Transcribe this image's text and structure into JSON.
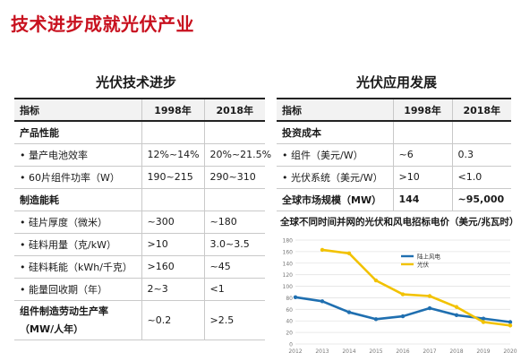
{
  "title": "技术进步成就光伏产业",
  "left": {
    "title": "光伏技术进步",
    "headers": [
      "指标",
      "1998年",
      "2018年"
    ],
    "rows": [
      {
        "label": "产品性能",
        "type": "section",
        "v1": "",
        "v2": ""
      },
      {
        "label": "量产电池效率",
        "type": "bullet",
        "v1": "12%~14%",
        "v2": "20%~21.5%"
      },
      {
        "label": "60片组件功率（W）",
        "type": "bullet",
        "v1": "190~215",
        "v2": "290~310"
      },
      {
        "label": "制造能耗",
        "type": "section",
        "v1": "",
        "v2": ""
      },
      {
        "label": "硅片厚度（微米）",
        "type": "bullet",
        "v1": "~300",
        "v2": "~180"
      },
      {
        "label": "硅料用量（克/kW）",
        "type": "bullet",
        "v1": ">10",
        "v2": "3.0~3.5"
      },
      {
        "label": "硅料耗能（kWh/千克）",
        "type": "bullet",
        "v1": ">160",
        "v2": "~45"
      },
      {
        "label": "能量回收期（年）",
        "type": "bullet",
        "v1": "2~3",
        "v2": "<1"
      },
      {
        "label": "组件制造劳动生产率",
        "label2": "（MW/人年）",
        "type": "section-tall",
        "v1": "~0.2",
        "v2": ">2.5"
      }
    ]
  },
  "right": {
    "title": "光伏应用发展",
    "headers": [
      "指标",
      "1998年",
      "2018年"
    ],
    "rows": [
      {
        "label": "投资成本",
        "type": "section",
        "v1": "",
        "v2": ""
      },
      {
        "label": "组件（美元/W）",
        "type": "bullet",
        "v1": "~6",
        "v2": "0.3"
      },
      {
        "label": "光伏系统（美元/W）",
        "type": "bullet",
        "v1": ">10",
        "v2": "<1.0"
      },
      {
        "label": "全球市场规模（MW）",
        "type": "bold",
        "v1": "144",
        "v2": "~95,000"
      }
    ]
  },
  "chart_data": {
    "type": "line",
    "title": "全球不同时间并网的光伏和风电招标电价（美元/兆瓦时）",
    "x": [
      2012,
      2013,
      2014,
      2015,
      2016,
      2017,
      2018,
      2019,
      2020
    ],
    "ylim": [
      0,
      180
    ],
    "yticks": [
      0,
      20,
      40,
      60,
      80,
      100,
      120,
      140,
      160,
      180
    ],
    "series": [
      {
        "name": "陆上风电",
        "color": "#1f6fb0",
        "values": [
          81,
          74,
          55,
          43,
          48,
          62,
          50,
          44,
          38
        ]
      },
      {
        "name": "光伏",
        "color": "#f2c200",
        "values": [
          null,
          163,
          157,
          110,
          86,
          83,
          64,
          38,
          32
        ]
      }
    ],
    "legend": "top-center",
    "grid": true
  },
  "colors": {
    "accent": "#c8101e",
    "wind": "#1f6fb0",
    "pv": "#f2c200"
  }
}
